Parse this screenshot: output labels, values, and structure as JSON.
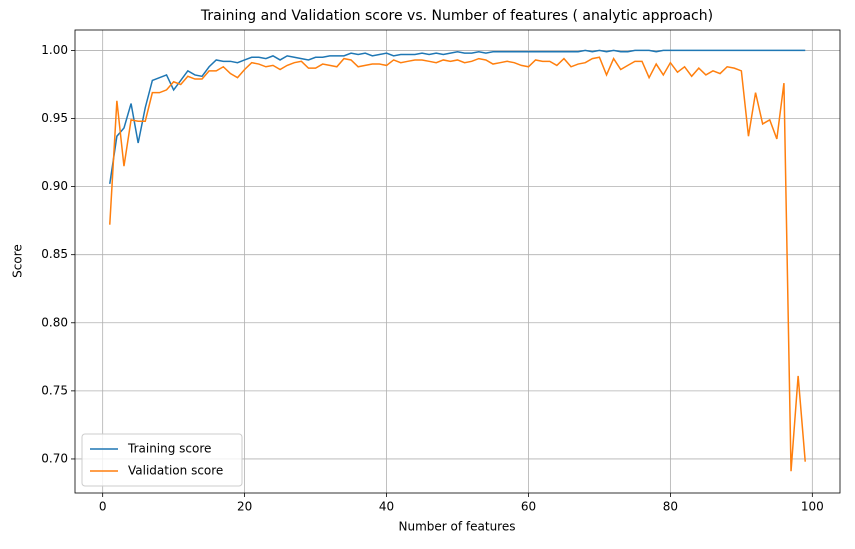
{
  "chart_data": {
    "type": "line",
    "title": "Training and Validation score vs. Number of features ( analytic approach)",
    "x_label": "Number of features",
    "y_label": "Score",
    "x": [
      1,
      2,
      3,
      4,
      5,
      6,
      7,
      8,
      9,
      10,
      11,
      12,
      13,
      14,
      15,
      16,
      17,
      18,
      19,
      20,
      21,
      22,
      23,
      24,
      25,
      26,
      27,
      28,
      29,
      30,
      31,
      32,
      33,
      34,
      35,
      36,
      37,
      38,
      39,
      40,
      41,
      42,
      43,
      44,
      45,
      46,
      47,
      48,
      49,
      50,
      51,
      52,
      53,
      54,
      55,
      56,
      57,
      58,
      59,
      60,
      61,
      62,
      63,
      64,
      65,
      66,
      67,
      68,
      69,
      70,
      71,
      72,
      73,
      74,
      75,
      76,
      77,
      78,
      79,
      80,
      81,
      82,
      83,
      84,
      85,
      86,
      87,
      88,
      89,
      90,
      91,
      92,
      93,
      94,
      95,
      96,
      97,
      98,
      99
    ],
    "series": [
      {
        "name": "Training score",
        "color": "#1f77b4",
        "values": [
          0.902,
          0.937,
          0.943,
          0.961,
          0.932,
          0.958,
          0.978,
          0.98,
          0.982,
          0.971,
          0.978,
          0.985,
          0.982,
          0.981,
          0.988,
          0.993,
          0.992,
          0.992,
          0.991,
          0.993,
          0.995,
          0.995,
          0.994,
          0.996,
          0.993,
          0.996,
          0.995,
          0.994,
          0.993,
          0.995,
          0.995,
          0.996,
          0.996,
          0.996,
          0.998,
          0.997,
          0.998,
          0.996,
          0.997,
          0.998,
          0.996,
          0.997,
          0.997,
          0.997,
          0.998,
          0.997,
          0.998,
          0.997,
          0.998,
          0.999,
          0.998,
          0.998,
          0.999,
          0.998,
          0.999,
          0.999,
          0.999,
          0.999,
          0.999,
          0.999,
          0.999,
          0.999,
          0.999,
          0.999,
          0.999,
          0.999,
          0.999,
          1.0,
          0.999,
          1.0,
          0.999,
          1.0,
          0.999,
          0.999,
          1.0,
          1.0,
          1.0,
          0.999,
          1.0,
          1.0,
          1.0,
          1.0,
          1.0,
          1.0,
          1.0,
          1.0,
          1.0,
          1.0,
          1.0,
          1.0,
          1.0,
          1.0,
          1.0,
          1.0,
          1.0,
          1.0,
          1.0,
          1.0,
          1.0
        ]
      },
      {
        "name": "Validation score",
        "color": "#ff7f0e",
        "values": [
          0.872,
          0.963,
          0.915,
          0.949,
          0.948,
          0.948,
          0.969,
          0.969,
          0.971,
          0.977,
          0.975,
          0.981,
          0.979,
          0.979,
          0.985,
          0.985,
          0.988,
          0.983,
          0.98,
          0.986,
          0.991,
          0.99,
          0.988,
          0.989,
          0.986,
          0.989,
          0.991,
          0.992,
          0.987,
          0.987,
          0.99,
          0.989,
          0.988,
          0.994,
          0.993,
          0.988,
          0.989,
          0.99,
          0.99,
          0.989,
          0.993,
          0.991,
          0.992,
          0.993,
          0.993,
          0.992,
          0.991,
          0.993,
          0.992,
          0.993,
          0.991,
          0.992,
          0.994,
          0.993,
          0.99,
          0.991,
          0.992,
          0.991,
          0.989,
          0.988,
          0.993,
          0.992,
          0.992,
          0.989,
          0.994,
          0.988,
          0.99,
          0.991,
          0.994,
          0.995,
          0.982,
          0.994,
          0.986,
          0.989,
          0.992,
          0.992,
          0.98,
          0.99,
          0.982,
          0.991,
          0.984,
          0.988,
          0.981,
          0.987,
          0.982,
          0.985,
          0.983,
          0.988,
          0.987,
          0.985,
          0.937,
          0.969,
          0.946,
          0.949,
          0.935,
          0.976,
          0.691,
          0.761,
          0.698
        ]
      }
    ],
    "xlim": [
      -3.9,
      103.9
    ],
    "xticks": [
      0,
      20,
      40,
      60,
      80,
      100
    ],
    "ylim": [
      0.675,
      1.015
    ],
    "yticks": [
      {
        "value": 0.7,
        "label": "0.70"
      },
      {
        "value": 0.75,
        "label": "0.75"
      },
      {
        "value": 0.8,
        "label": "0.80"
      },
      {
        "value": 0.85,
        "label": "0.85"
      },
      {
        "value": 0.9,
        "label": "0.90"
      },
      {
        "value": 0.95,
        "label": "0.95"
      },
      {
        "value": 1.0,
        "label": "1.00"
      }
    ],
    "grid": true,
    "legend": "lower left"
  }
}
